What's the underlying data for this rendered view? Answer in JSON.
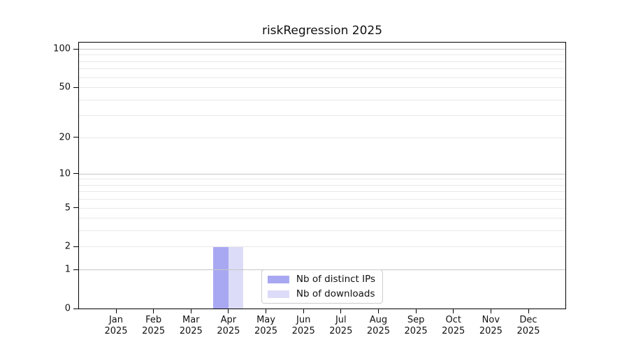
{
  "chart_data": {
    "type": "bar",
    "title": "riskRegression 2025",
    "categories": [
      "Jan",
      "Feb",
      "Mar",
      "Apr",
      "May",
      "Jun",
      "Jul",
      "Aug",
      "Sep",
      "Oct",
      "Nov",
      "Dec"
    ],
    "x_year": "2025",
    "series": [
      {
        "name": "Nb of distinct IPs",
        "color": "#a8a8f2",
        "values": [
          0,
          0,
          0,
          2,
          0,
          0,
          0,
          0,
          0,
          0,
          0,
          0
        ]
      },
      {
        "name": "Nb of downloads",
        "color": "#dcdcf8",
        "values": [
          0,
          0,
          0,
          2,
          0,
          0,
          0,
          0,
          0,
          0,
          0,
          0
        ]
      }
    ],
    "y_axis": {
      "scale": "log1p",
      "max": 100,
      "tick_values": [
        0,
        1,
        2,
        5,
        10,
        20,
        50,
        100
      ],
      "minor_gridline_values": [
        3,
        4,
        6,
        7,
        8,
        9,
        30,
        40,
        60,
        70,
        80,
        90
      ]
    },
    "grid": true,
    "legend_position": "lower center",
    "colors": {
      "grid_major": "#c6c6c6",
      "grid_minor": "#e8e8e8",
      "axis": "#000000",
      "text": "#111111",
      "background": "#ffffff",
      "legend_border": "#cccccc"
    }
  }
}
